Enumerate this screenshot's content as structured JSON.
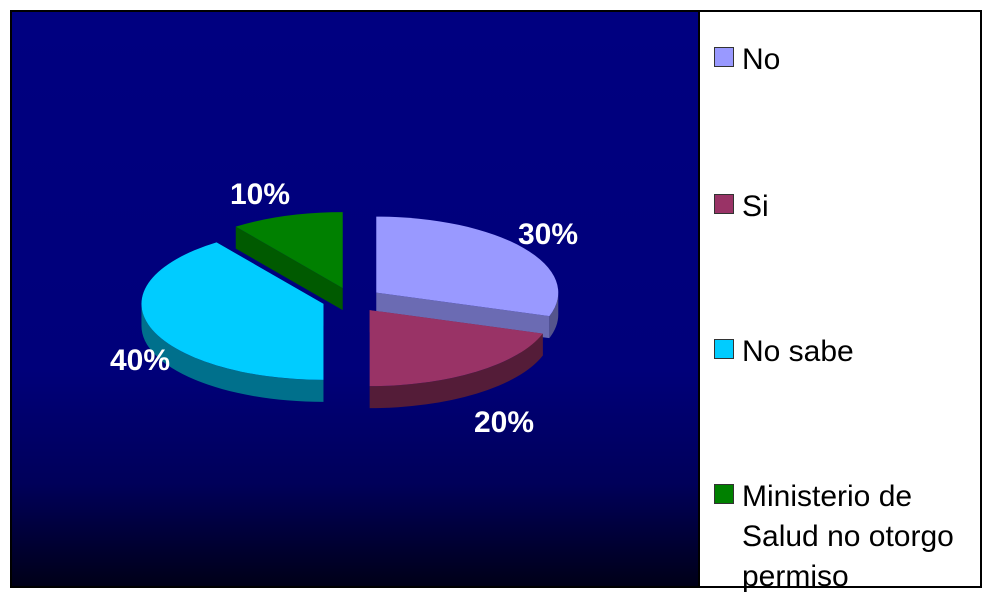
{
  "chart_data": {
    "type": "pie",
    "categories": [
      "No",
      "Si",
      "No sabe",
      "Ministerio de Salud no otorgo permiso"
    ],
    "values": [
      30,
      20,
      40,
      10
    ],
    "data_labels": [
      "30%",
      "20%",
      "40%",
      "10%"
    ],
    "legend_position": "right",
    "colors": [
      "#9999ff",
      "#993366",
      "#00ccff",
      "#008000"
    ],
    "title": ""
  }
}
